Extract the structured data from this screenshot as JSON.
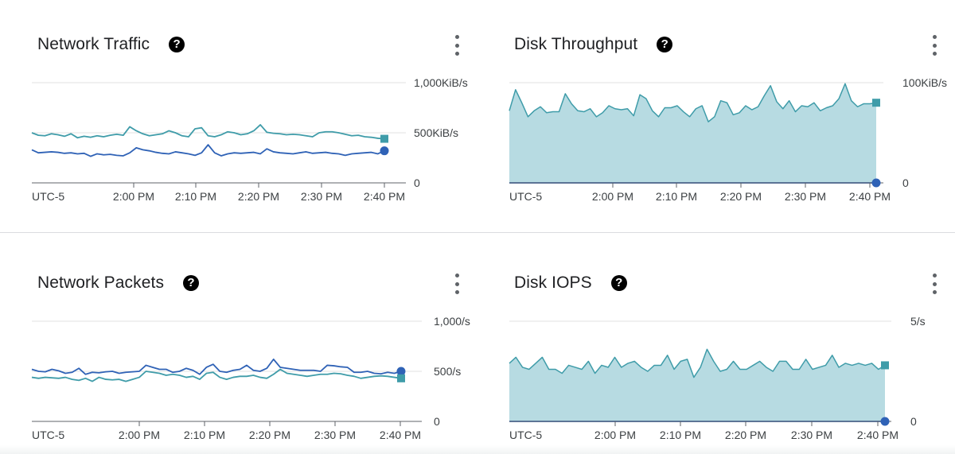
{
  "colors": {
    "series_received": "#3f9ca9",
    "series_sent": "#2f62b6",
    "area_fill": "#b7dbe2",
    "grid": "#e0e0e0",
    "axis": "#5f6368"
  },
  "icons": {
    "help": "help-circle-icon",
    "menu": "more-vert-icon"
  },
  "panels": [
    {
      "title": "Network Traffic",
      "help_glyph": "?",
      "chart_data": {
        "type": "line",
        "y_ticks": [
          "1,000KiB/s",
          "500KiB/s",
          "0"
        ],
        "y_tick_values": [
          1000,
          500,
          0
        ],
        "ylim": [
          0,
          1000
        ],
        "x_ticks": [
          "UTC-5",
          "2:00 PM",
          "2:10 PM",
          "2:20 PM",
          "2:30 PM",
          "2:40 PM"
        ],
        "grid": true,
        "series": [
          {
            "color": "#3f9ca9",
            "marker": "square",
            "values": [
              500,
              475,
              470,
              490,
              480,
              465,
              490,
              450,
              465,
              455,
              470,
              460,
              475,
              485,
              475,
              560,
              520,
              490,
              470,
              480,
              490,
              520,
              500,
              470,
              460,
              540,
              550,
              470,
              460,
              480,
              510,
              500,
              480,
              490,
              520,
              580,
              505,
              495,
              490,
              480,
              485,
              480,
              470,
              460,
              500,
              510,
              510,
              500,
              485,
              470,
              475,
              460,
              455,
              445,
              440
            ]
          },
          {
            "color": "#2f62b6",
            "marker": "circle",
            "values": [
              330,
              300,
              305,
              310,
              305,
              295,
              300,
              290,
              295,
              265,
              290,
              280,
              285,
              275,
              270,
              300,
              350,
              330,
              320,
              305,
              295,
              290,
              310,
              300,
              290,
              275,
              300,
              380,
              300,
              270,
              290,
              300,
              295,
              300,
              305,
              290,
              340,
              310,
              300,
              295,
              290,
              300,
              310,
              295,
              300,
              305,
              295,
              290,
              275,
              290,
              295,
              300,
              305,
              290,
              320
            ]
          }
        ]
      }
    },
    {
      "title": "Disk Throughput",
      "help_glyph": "?",
      "chart_data": {
        "type": "area",
        "y_ticks": [
          "100KiB/s",
          "0"
        ],
        "y_tick_values": [
          100,
          0
        ],
        "ylim": [
          0,
          100
        ],
        "x_ticks": [
          "UTC-5",
          "2:00 PM",
          "2:10 PM",
          "2:20 PM",
          "2:30 PM",
          "2:40 PM"
        ],
        "grid": true,
        "series": [
          {
            "color": "#3f9ca9",
            "marker": "square",
            "fill": true,
            "values": [
              72,
              93,
              80,
              66,
              72,
              76,
              70,
              71,
              71,
              89,
              79,
              72,
              71,
              74,
              66,
              70,
              77,
              74,
              73,
              74,
              67,
              88,
              84,
              72,
              66,
              75,
              75,
              77,
              71,
              66,
              74,
              77,
              61,
              66,
              82,
              80,
              68,
              70,
              77,
              73,
              76,
              87,
              97,
              81,
              74,
              82,
              71,
              77,
              76,
              80,
              72,
              75,
              77,
              84,
              99,
              82,
              76,
              79,
              79,
              80
            ]
          },
          {
            "color": "#2f62b6",
            "marker": "circle",
            "values": [
              0,
              0
            ]
          }
        ]
      }
    },
    {
      "title": "Network Packets",
      "help_glyph": "?",
      "chart_data": {
        "type": "line",
        "y_ticks": [
          "1,000/s",
          "500/s",
          "0"
        ],
        "y_tick_values": [
          1000,
          500,
          0
        ],
        "ylim": [
          0,
          1000
        ],
        "x_ticks": [
          "UTC-5",
          "2:00 PM",
          "2:10 PM",
          "2:20 PM",
          "2:30 PM",
          "2:40 PM"
        ],
        "grid": true,
        "series": [
          {
            "color": "#2f62b6",
            "marker": "circle",
            "values": [
              520,
              500,
              495,
              520,
              505,
              480,
              490,
              530,
              470,
              490,
              485,
              495,
              500,
              480,
              490,
              495,
              500,
              560,
              540,
              520,
              520,
              490,
              500,
              530,
              510,
              470,
              540,
              570,
              500,
              490,
              510,
              520,
              560,
              510,
              500,
              530,
              620,
              540,
              530,
              520,
              510,
              510,
              510,
              500,
              560,
              555,
              545,
              540,
              490,
              490,
              500,
              480,
              475,
              490,
              480,
              500
            ]
          },
          {
            "color": "#3f9ca9",
            "marker": "square",
            "values": [
              440,
              430,
              440,
              435,
              430,
              440,
              420,
              410,
              430,
              400,
              440,
              420,
              415,
              420,
              400,
              420,
              440,
              500,
              490,
              480,
              460,
              470,
              460,
              440,
              450,
              420,
              480,
              490,
              440,
              420,
              440,
              450,
              450,
              460,
              440,
              430,
              470,
              520,
              480,
              470,
              460,
              450,
              460,
              470,
              470,
              480,
              475,
              460,
              450,
              430,
              440,
              450,
              455,
              450,
              440,
              430
            ]
          }
        ]
      }
    },
    {
      "title": "Disk IOPS",
      "help_glyph": "?",
      "chart_data": {
        "type": "area",
        "y_ticks": [
          "5/s",
          "0"
        ],
        "y_tick_values": [
          5,
          0
        ],
        "ylim": [
          0,
          5
        ],
        "x_ticks": [
          "UTC-5",
          "2:00 PM",
          "2:10 PM",
          "2:20 PM",
          "2:30 PM",
          "2:40 PM"
        ],
        "grid": true,
        "series": [
          {
            "color": "#3f9ca9",
            "marker": "square",
            "fill": true,
            "values": [
              2.9,
              3.2,
              2.7,
              2.6,
              2.9,
              3.2,
              2.6,
              2.6,
              2.4,
              2.8,
              2.7,
              2.6,
              3.0,
              2.4,
              2.8,
              2.7,
              3.2,
              2.7,
              2.9,
              3.0,
              2.7,
              2.5,
              2.8,
              2.8,
              3.3,
              2.6,
              3.0,
              3.1,
              2.2,
              2.7,
              3.6,
              3.0,
              2.5,
              2.6,
              3.0,
              2.6,
              2.6,
              2.8,
              3.0,
              2.7,
              2.5,
              3.0,
              3.0,
              2.6,
              2.6,
              3.1,
              2.6,
              2.7,
              2.8,
              3.3,
              2.7,
              2.9,
              2.8,
              2.9,
              2.8,
              2.9,
              2.6,
              2.8
            ]
          },
          {
            "color": "#2f62b6",
            "marker": "circle",
            "values": [
              0,
              0
            ]
          }
        ]
      }
    }
  ]
}
